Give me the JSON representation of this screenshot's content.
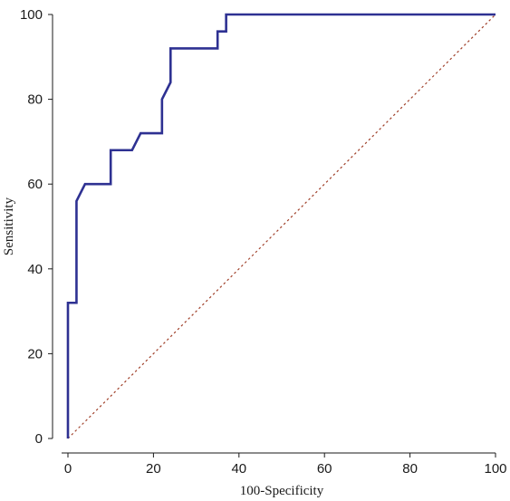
{
  "chart_data": {
    "type": "line",
    "xlabel": "100-Specificity",
    "ylabel": "Sensitivity",
    "xlim": [
      0,
      100
    ],
    "ylim": [
      0,
      100
    ],
    "x_ticks": [
      "0",
      "20",
      "40",
      "60",
      "80",
      "100"
    ],
    "y_ticks": [
      "0",
      "20",
      "40",
      "60",
      "80",
      "100"
    ],
    "grid": false,
    "legend": "none",
    "series": [
      {
        "style": "solid",
        "color": "#2e3192",
        "points": [
          [
            0,
            0
          ],
          [
            0,
            32
          ],
          [
            2,
            32
          ],
          [
            2,
            56
          ],
          [
            4,
            60
          ],
          [
            10,
            60
          ],
          [
            10,
            68
          ],
          [
            15,
            68
          ],
          [
            17,
            72
          ],
          [
            22,
            72
          ],
          [
            22,
            80
          ],
          [
            24,
            84
          ],
          [
            24,
            92
          ],
          [
            35,
            92
          ],
          [
            35,
            96
          ],
          [
            37,
            96
          ],
          [
            37,
            100
          ],
          [
            100,
            100
          ]
        ]
      },
      {
        "style": "dotted",
        "color": "#a0402a",
        "points": [
          [
            0,
            0
          ],
          [
            100,
            100
          ]
        ]
      }
    ]
  }
}
